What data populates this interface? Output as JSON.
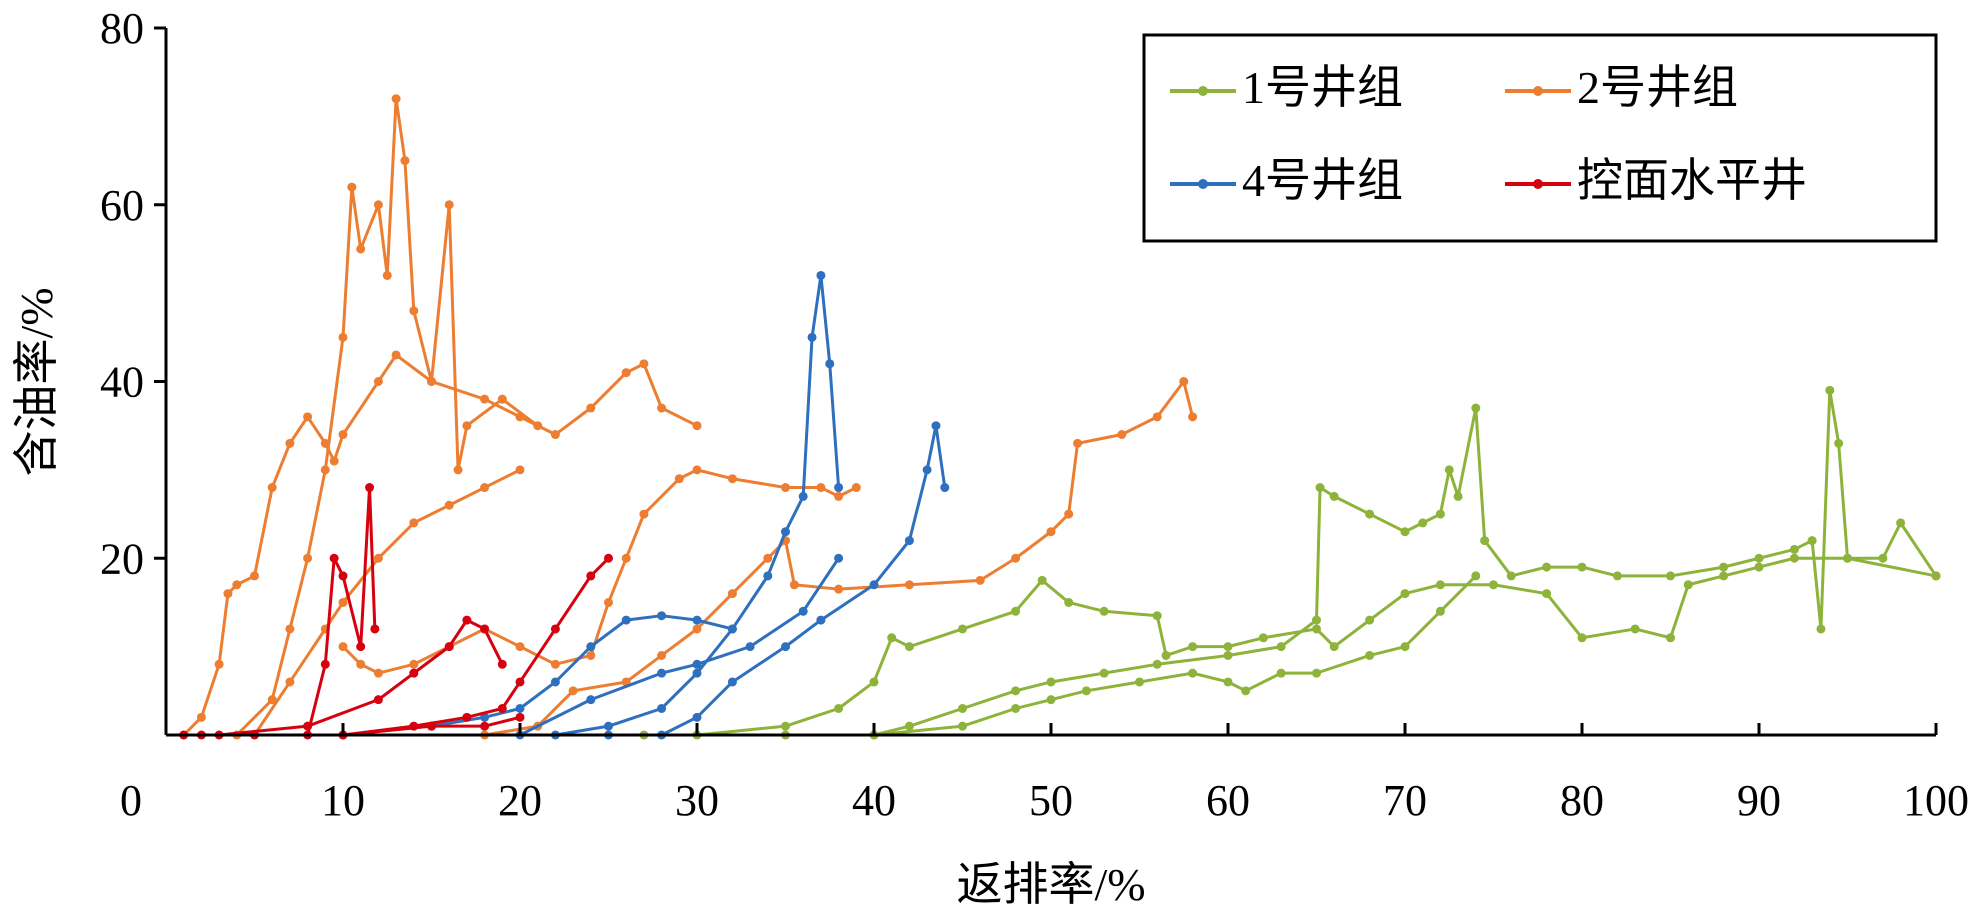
{
  "chart_data": {
    "type": "line",
    "title": "",
    "xlabel": "返排率/%",
    "ylabel": "含油率/%",
    "xlim": [
      0,
      100
    ],
    "ylim": [
      0,
      80
    ],
    "xticks": [
      0,
      10,
      20,
      30,
      40,
      50,
      60,
      70,
      80,
      90,
      100
    ],
    "yticks": [
      20,
      40,
      60,
      80
    ],
    "grid": false,
    "legend_position": "top-right",
    "series": [
      {
        "name": "1号井组",
        "color": "#8DB33A",
        "curves": [
          [
            [
              27,
              0
            ],
            [
              35,
              0
            ],
            [
              40,
              0
            ],
            [
              42,
              1
            ],
            [
              45,
              3
            ],
            [
              48,
              5
            ],
            [
              50,
              6
            ],
            [
              53,
              7
            ],
            [
              56,
              8
            ],
            [
              60,
              9
            ],
            [
              63,
              10
            ],
            [
              65,
              13
            ],
            [
              65.2,
              28
            ],
            [
              66,
              27
            ],
            [
              68,
              25
            ],
            [
              70,
              23
            ],
            [
              71,
              24
            ],
            [
              72,
              25
            ],
            [
              72.5,
              30
            ],
            [
              73,
              27
            ],
            [
              74,
              37
            ],
            [
              74.5,
              22
            ],
            [
              76,
              18
            ],
            [
              78,
              19
            ],
            [
              80,
              19
            ],
            [
              82,
              18
            ],
            [
              85,
              18
            ],
            [
              88,
              19
            ],
            [
              90,
              20
            ],
            [
              92,
              21
            ],
            [
              93,
              22
            ],
            [
              93.5,
              12
            ],
            [
              94,
              39
            ],
            [
              94.5,
              33
            ],
            [
              95,
              20
            ],
            [
              97,
              20
            ],
            [
              98,
              24
            ],
            [
              100,
              18
            ]
          ],
          [
            [
              30,
              0
            ],
            [
              35,
              1
            ],
            [
              38,
              3
            ],
            [
              40,
              6
            ],
            [
              41,
              11
            ],
            [
              42,
              10
            ],
            [
              45,
              12
            ],
            [
              48,
              14
            ],
            [
              49.5,
              17.5
            ],
            [
              51,
              15
            ],
            [
              53,
              14
            ],
            [
              56,
              13.5
            ],
            [
              56.5,
              9
            ],
            [
              58,
              10
            ],
            [
              60,
              10
            ],
            [
              62,
              11
            ],
            [
              65,
              12
            ],
            [
              66,
              10
            ],
            [
              68,
              13
            ],
            [
              70,
              16
            ],
            [
              72,
              17
            ],
            [
              75,
              17
            ],
            [
              78,
              16
            ],
            [
              80,
              11
            ],
            [
              83,
              12
            ],
            [
              85,
              11
            ],
            [
              86,
              17
            ],
            [
              88,
              18
            ],
            [
              90,
              19
            ],
            [
              92,
              20
            ],
            [
              95,
              20
            ],
            [
              100,
              18
            ]
          ],
          [
            [
              40,
              0
            ],
            [
              45,
              1
            ],
            [
              48,
              3
            ],
            [
              50,
              4
            ],
            [
              52,
              5
            ],
            [
              55,
              6
            ],
            [
              58,
              7
            ],
            [
              60,
              6
            ],
            [
              61,
              5
            ],
            [
              63,
              7
            ],
            [
              65,
              7
            ],
            [
              68,
              9
            ],
            [
              70,
              10
            ],
            [
              72,
              14
            ],
            [
              74,
              18
            ]
          ]
        ]
      },
      {
        "name": "2号井组",
        "color": "#ED7D31",
        "curves": [
          [
            [
              1,
              0
            ],
            [
              2,
              2
            ],
            [
              3,
              8
            ],
            [
              3.5,
              16
            ],
            [
              4,
              17
            ],
            [
              5,
              18
            ],
            [
              6,
              28
            ],
            [
              7,
              33
            ],
            [
              8,
              36
            ],
            [
              9,
              33
            ],
            [
              9.5,
              31
            ],
            [
              10,
              34
            ],
            [
              12,
              40
            ],
            [
              13,
              43
            ],
            [
              15,
              40
            ],
            [
              18,
              38
            ],
            [
              20,
              36
            ],
            [
              22,
              34
            ],
            [
              24,
              37
            ],
            [
              26,
              41
            ],
            [
              27,
              42
            ],
            [
              28,
              37
            ],
            [
              30,
              35
            ]
          ],
          [
            [
              4,
              0
            ],
            [
              6,
              4
            ],
            [
              7,
              12
            ],
            [
              8,
              20
            ],
            [
              9,
              30
            ],
            [
              10,
              45
            ],
            [
              10.5,
              62
            ],
            [
              11,
              55
            ],
            [
              12,
              60
            ],
            [
              12.5,
              52
            ],
            [
              13,
              72
            ],
            [
              13.5,
              65
            ],
            [
              14,
              48
            ],
            [
              15,
              40
            ],
            [
              16,
              60
            ],
            [
              16.5,
              30
            ],
            [
              17,
              35
            ],
            [
              19,
              38
            ],
            [
              21,
              35
            ]
          ],
          [
            [
              5,
              0
            ],
            [
              7,
              6
            ],
            [
              9,
              12
            ],
            [
              10,
              15
            ],
            [
              12,
              20
            ],
            [
              14,
              24
            ],
            [
              16,
              26
            ],
            [
              18,
              28
            ],
            [
              20,
              30
            ]
          ],
          [
            [
              10,
              10
            ],
            [
              11,
              8
            ],
            [
              12,
              7
            ],
            [
              14,
              8
            ],
            [
              16,
              10
            ],
            [
              18,
              12
            ],
            [
              20,
              10
            ],
            [
              22,
              8
            ],
            [
              24,
              9
            ],
            [
              25,
              15
            ],
            [
              26,
              20
            ],
            [
              27,
              25
            ],
            [
              29,
              29
            ],
            [
              30,
              30
            ],
            [
              32,
              29
            ],
            [
              35,
              28
            ],
            [
              37,
              28
            ],
            [
              38,
              27
            ],
            [
              39,
              28
            ]
          ],
          [
            [
              18,
              0
            ],
            [
              21,
              1
            ],
            [
              23,
              5
            ],
            [
              26,
              6
            ],
            [
              28,
              9
            ],
            [
              30,
              12
            ],
            [
              32,
              16
            ],
            [
              34,
              20
            ],
            [
              35,
              22
            ],
            [
              35.5,
              17
            ],
            [
              38,
              16.5
            ],
            [
              42,
              17
            ],
            [
              46,
              17.5
            ],
            [
              48,
              20
            ],
            [
              50,
              23
            ],
            [
              51,
              25
            ],
            [
              51.5,
              33
            ],
            [
              54,
              34
            ],
            [
              56,
              36
            ],
            [
              57.5,
              40
            ],
            [
              58,
              36
            ]
          ]
        ]
      },
      {
        "name": "4号井组",
        "color": "#2E6FBE",
        "curves": [
          [
            [
              15,
              1
            ],
            [
              18,
              2
            ],
            [
              20,
              3
            ],
            [
              22,
              6
            ],
            [
              24,
              10
            ],
            [
              26,
              13
            ],
            [
              28,
              13.5
            ],
            [
              30,
              13
            ],
            [
              32,
              12
            ]
          ],
          [
            [
              22,
              0
            ],
            [
              25,
              1
            ],
            [
              28,
              3
            ],
            [
              30,
              7
            ],
            [
              32,
              12
            ],
            [
              34,
              18
            ],
            [
              35,
              23
            ],
            [
              36,
              27
            ],
            [
              36.5,
              45
            ],
            [
              37,
              52
            ],
            [
              37.5,
              42
            ],
            [
              38,
              28
            ]
          ],
          [
            [
              25,
              0
            ],
            [
              28,
              0
            ],
            [
              30,
              2
            ],
            [
              32,
              6
            ],
            [
              35,
              10
            ],
            [
              37,
              13
            ],
            [
              40,
              17
            ],
            [
              42,
              22
            ],
            [
              43,
              30
            ],
            [
              43.5,
              35
            ],
            [
              44,
              28
            ]
          ],
          [
            [
              20,
              0
            ],
            [
              24,
              4
            ],
            [
              28,
              7
            ],
            [
              30,
              8
            ],
            [
              33,
              10
            ],
            [
              36,
              14
            ],
            [
              38,
              20
            ]
          ]
        ]
      },
      {
        "name": "控面水平井",
        "color": "#D7000F",
        "curves": [
          [
            [
              1,
              0
            ],
            [
              5,
              0
            ],
            [
              8,
              0
            ],
            [
              9,
              8
            ],
            [
              9.5,
              20
            ],
            [
              10,
              18
            ],
            [
              11,
              10
            ],
            [
              11.5,
              28
            ],
            [
              11.8,
              12
            ]
          ],
          [
            [
              3,
              0
            ],
            [
              8,
              1
            ],
            [
              12,
              4
            ],
            [
              14,
              7
            ],
            [
              16,
              10
            ],
            [
              17,
              13
            ],
            [
              18,
              12
            ],
            [
              19,
              8
            ]
          ],
          [
            [
              10,
              0
            ],
            [
              14,
              1
            ],
            [
              17,
              2
            ],
            [
              19,
              3
            ],
            [
              20,
              6
            ],
            [
              22,
              12
            ],
            [
              24,
              18
            ],
            [
              25,
              20
            ]
          ],
          [
            [
              2,
              0
            ],
            [
              10,
              0
            ],
            [
              15,
              1
            ],
            [
              18,
              1
            ],
            [
              20,
              2
            ]
          ]
        ]
      }
    ]
  }
}
